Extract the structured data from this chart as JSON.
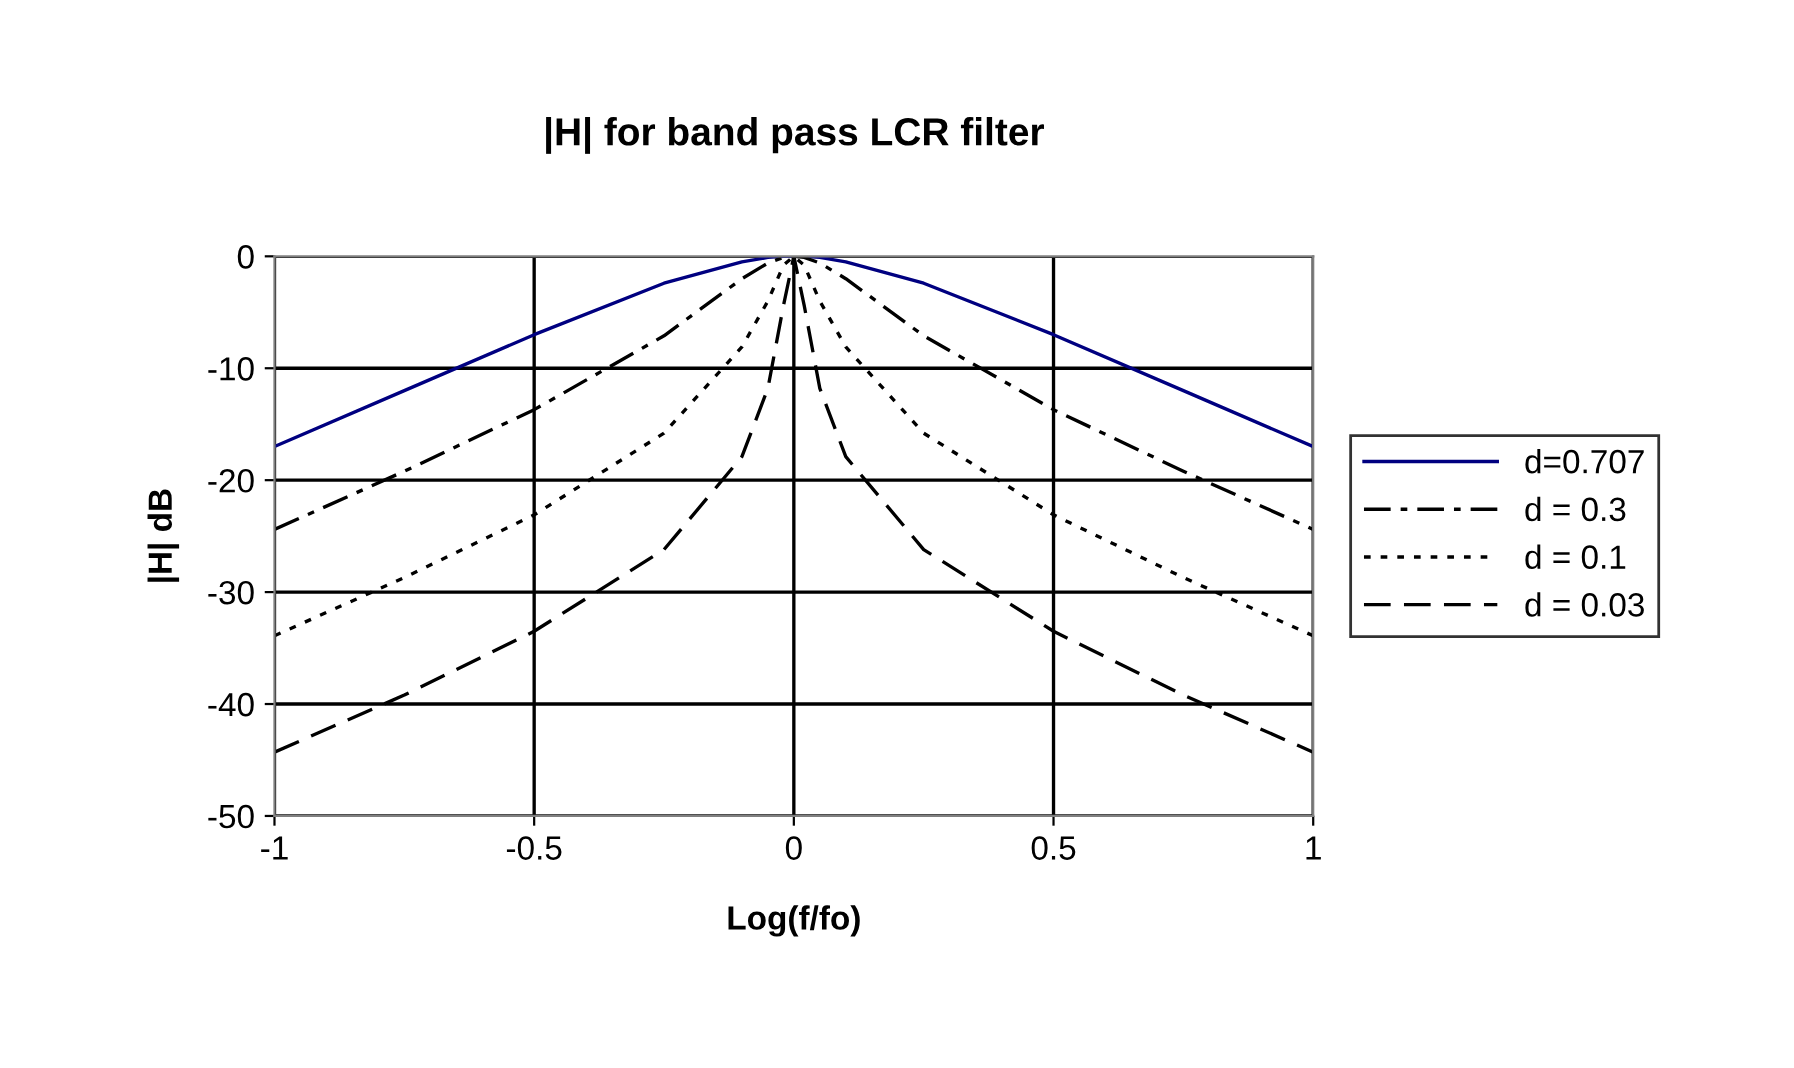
{
  "chart_data": {
    "type": "line",
    "title": "|H| for band pass LCR filter",
    "xlabel": "Log(f/fo)",
    "ylabel": "|H| dB",
    "x": [
      -1,
      -0.75,
      -0.5,
      -0.25,
      -0.1,
      -0.05,
      -0.02,
      0,
      0.02,
      0.05,
      0.1,
      0.25,
      0.5,
      0.75,
      1
    ],
    "series": [
      {
        "name": "d=0.707",
        "color": "#000080",
        "line_style": "solid",
        "values": [
          -17,
          -12,
          -7,
          -2.4,
          -0.5,
          -0.1,
          0,
          0,
          0,
          -0.1,
          -0.5,
          -2.4,
          -7,
          -12,
          -17
        ]
      },
      {
        "name": "d = 0.3",
        "color": "#000000",
        "line_style": "dashdot",
        "values": [
          -24.4,
          -19.2,
          -13.7,
          -7.1,
          -2,
          -0.6,
          -0.1,
          0,
          -0.1,
          -0.6,
          -2,
          -7.1,
          -13.7,
          -19.2,
          -24.4
        ]
      },
      {
        "name": "d = 0.1",
        "color": "#000000",
        "line_style": "dotted",
        "values": [
          -33.9,
          -28.7,
          -23.1,
          -15.8,
          -8.1,
          -4,
          -0.8,
          0,
          -0.8,
          -4,
          -8.1,
          -15.8,
          -23.1,
          -28.7,
          -33.9
        ]
      },
      {
        "name": "d = 0.03",
        "color": "#000000",
        "line_style": "dashed",
        "values": [
          -44.3,
          -39.2,
          -33.5,
          -26.2,
          -17.9,
          -11.8,
          -4.4,
          0,
          -4.4,
          -11.8,
          -17.9,
          -26.2,
          -33.5,
          -39.2,
          -44.3
        ]
      }
    ],
    "xlim": [
      -1,
      1
    ],
    "xticks": [
      -1,
      -0.5,
      0,
      0.5,
      1
    ],
    "ylim": [
      -50,
      0
    ],
    "yticks": [
      -50,
      -40,
      -30,
      -20,
      -10,
      0
    ],
    "grid": true,
    "legend": "right",
    "marker": "none"
  }
}
